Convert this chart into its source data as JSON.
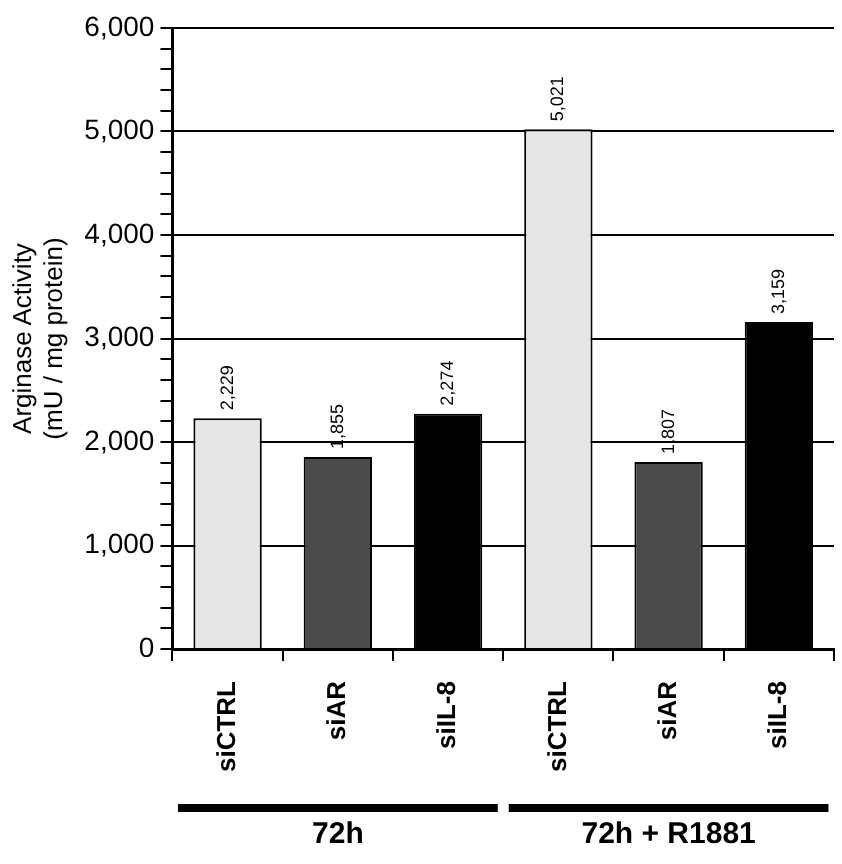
{
  "chart_data": {
    "type": "bar",
    "ylabel": "Arginase Activity\n(mU / mg protein)",
    "categories": [
      "siCTRL",
      "siAR",
      "siIL-8",
      "siCTRL",
      "siAR",
      "siIL-8"
    ],
    "values": [
      2229,
      1855,
      2274,
      5021,
      1807,
      3159
    ],
    "colors": [
      "#e6e6e6",
      "#4a4a4a",
      "#000000",
      "#e6e6e6",
      "#4a4a4a",
      "#000000"
    ],
    "value_labels": [
      "2,229",
      "1,855",
      "2,274",
      "5,021",
      "1,807",
      "3,159"
    ],
    "ylim": [
      0,
      6000
    ],
    "yticks": [
      0,
      {
        "value": 200,
        "label": null
      },
      {
        "value": 400,
        "label": null
      },
      {
        "value": 600,
        "label": null
      },
      {
        "value": 800,
        "label": null
      },
      {
        "value": 1000,
        "label": "1,000"
      },
      {
        "value": 1200,
        "label": null
      },
      {
        "value": 1400,
        "label": null
      },
      {
        "value": 1600,
        "label": null
      },
      {
        "value": 1800,
        "label": null
      },
      {
        "value": 2000,
        "label": "2,000"
      },
      {
        "value": 2200,
        "label": null
      },
      {
        "value": 2400,
        "label": null
      },
      {
        "value": 2600,
        "label": null
      },
      {
        "value": 2800,
        "label": null
      },
      {
        "value": 3000,
        "label": "3,000"
      },
      {
        "value": 3200,
        "label": null
      },
      {
        "value": 3400,
        "label": null
      },
      {
        "value": 3600,
        "label": null
      },
      {
        "value": 3800,
        "label": null
      },
      {
        "value": 4000,
        "label": "4,000"
      },
      {
        "value": 4200,
        "label": null
      },
      {
        "value": 4400,
        "label": null
      },
      {
        "value": 4600,
        "label": null
      },
      {
        "value": 4800,
        "label": null
      },
      {
        "value": 5000,
        "label": "5,000"
      },
      {
        "value": 5200,
        "label": null
      },
      {
        "value": 5400,
        "label": null
      },
      {
        "value": 5600,
        "label": null
      },
      {
        "value": 5800,
        "label": null
      },
      {
        "value": 6000,
        "label": "6,000"
      }
    ],
    "grid": "y",
    "annotations": [
      "72h",
      "72h + R1881"
    ]
  }
}
